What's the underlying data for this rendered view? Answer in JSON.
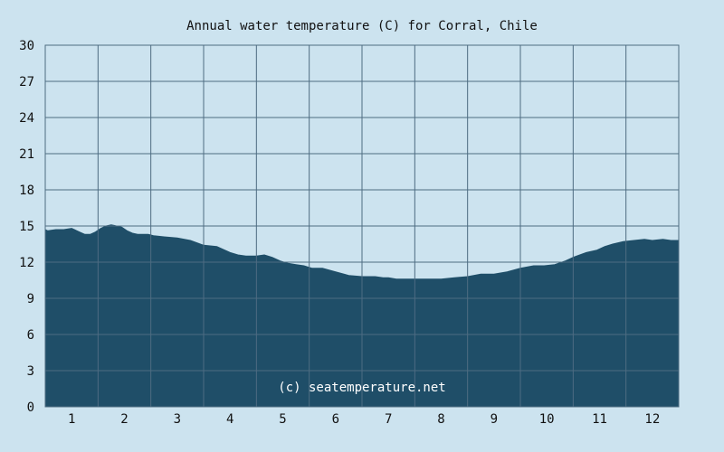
{
  "chart_data": {
    "type": "area",
    "title": "Annual water temperature (C) for Corral, Chile",
    "watermark": "(c) seatemperature.net",
    "xlabel": "",
    "ylabel": "",
    "xlim": [
      0.5,
      12.5
    ],
    "ylim": [
      0,
      30
    ],
    "x_ticks": [
      "1",
      "2",
      "3",
      "4",
      "5",
      "6",
      "7",
      "8",
      "9",
      "10",
      "11",
      "12"
    ],
    "y_ticks": [
      "0",
      "3",
      "6",
      "9",
      "12",
      "15",
      "18",
      "21",
      "24",
      "27",
      "30"
    ],
    "grid": true,
    "colors": {
      "background": "#cce3ef",
      "fill": "#1f4e68",
      "grid": "#4e6c82"
    },
    "series": [
      {
        "x": [
          0.5,
          0.55,
          0.7,
          0.85,
          1.0,
          1.05,
          1.15,
          1.25,
          1.35,
          1.45,
          1.55,
          1.65,
          1.75,
          1.85,
          1.95,
          2.05,
          2.15,
          2.25,
          2.35,
          2.45,
          2.55,
          2.75,
          3.0,
          3.25,
          3.5,
          3.75,
          4.0,
          4.15,
          4.3,
          4.5,
          4.65,
          4.8,
          4.95,
          5.1,
          5.25,
          5.4,
          5.55,
          5.75,
          6.0,
          6.25,
          6.5,
          6.75,
          6.9,
          7.0,
          7.15,
          7.3,
          7.5,
          7.75,
          8.0,
          8.25,
          8.5,
          8.75,
          9.0,
          9.25,
          9.5,
          9.75,
          9.95,
          10.15,
          10.35,
          10.5,
          10.75,
          10.95,
          11.1,
          11.25,
          11.45,
          11.65,
          11.85,
          12.0,
          12.2,
          12.35,
          12.5
        ],
        "values": [
          14.7,
          14.6,
          14.7,
          14.7,
          14.8,
          14.7,
          14.5,
          14.3,
          14.3,
          14.5,
          14.8,
          15.0,
          15.1,
          15.0,
          14.9,
          14.6,
          14.4,
          14.3,
          14.3,
          14.3,
          14.2,
          14.1,
          14.0,
          13.8,
          13.4,
          13.3,
          12.8,
          12.6,
          12.5,
          12.5,
          12.6,
          12.4,
          12.1,
          11.9,
          11.8,
          11.7,
          11.5,
          11.5,
          11.2,
          10.9,
          10.8,
          10.8,
          10.7,
          10.7,
          10.6,
          10.6,
          10.6,
          10.6,
          10.6,
          10.7,
          10.8,
          11.0,
          11.0,
          11.2,
          11.5,
          11.7,
          11.7,
          11.8,
          12.1,
          12.4,
          12.8,
          13.0,
          13.3,
          13.5,
          13.7,
          13.8,
          13.9,
          13.8,
          13.9,
          13.8,
          13.8
        ]
      }
    ]
  }
}
